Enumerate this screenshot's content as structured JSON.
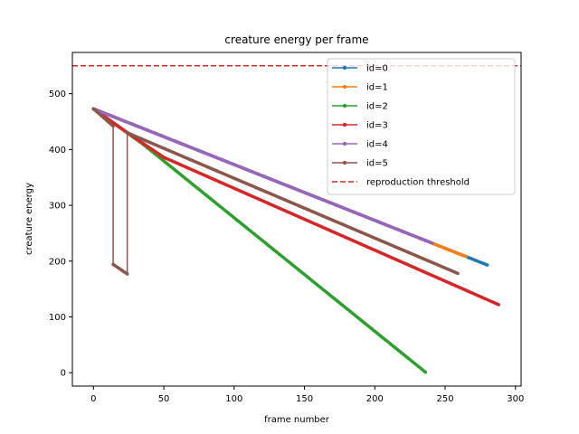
{
  "chart_data": {
    "type": "line",
    "title": "creature energy per frame",
    "xlabel": "frame number",
    "ylabel": "creature energy",
    "xlim": [
      -15,
      304
    ],
    "ylim": [
      -24,
      574
    ],
    "xticks": [
      0,
      50,
      100,
      150,
      200,
      250,
      300
    ],
    "yticks": [
      0,
      100,
      200,
      300,
      400,
      500
    ],
    "grid": false,
    "legend_position": "top-right",
    "threshold": {
      "name": "reproduction threshold",
      "value": 550,
      "color": "#d62728",
      "style": "dashed"
    },
    "series": [
      {
        "name": "id=0",
        "color": "#1f77b4",
        "points": [
          [
            0,
            473
          ],
          [
            280,
            193
          ]
        ]
      },
      {
        "name": "id=1",
        "color": "#ff7f0e",
        "points": [
          [
            0,
            473
          ],
          [
            265,
            208
          ]
        ]
      },
      {
        "name": "id=2",
        "color": "#2ca02c",
        "points": [
          [
            0,
            473
          ],
          [
            35,
            410
          ],
          [
            236,
            1
          ]
        ]
      },
      {
        "name": "id=3",
        "color": "#d62728",
        "points": [
          [
            0,
            473
          ],
          [
            30,
            420
          ],
          [
            50,
            386
          ],
          [
            288,
            122
          ]
        ]
      },
      {
        "name": "id=4",
        "color": "#9467bd",
        "points": [
          [
            0,
            473
          ],
          [
            241,
            232
          ]
        ]
      },
      {
        "name": "id=5",
        "color": "#8c564b",
        "points": [
          [
            0,
            473
          ],
          [
            14,
            442
          ],
          [
            14,
            194
          ],
          [
            24,
            177
          ],
          [
            24,
            430
          ],
          [
            259,
            178
          ]
        ]
      }
    ]
  }
}
